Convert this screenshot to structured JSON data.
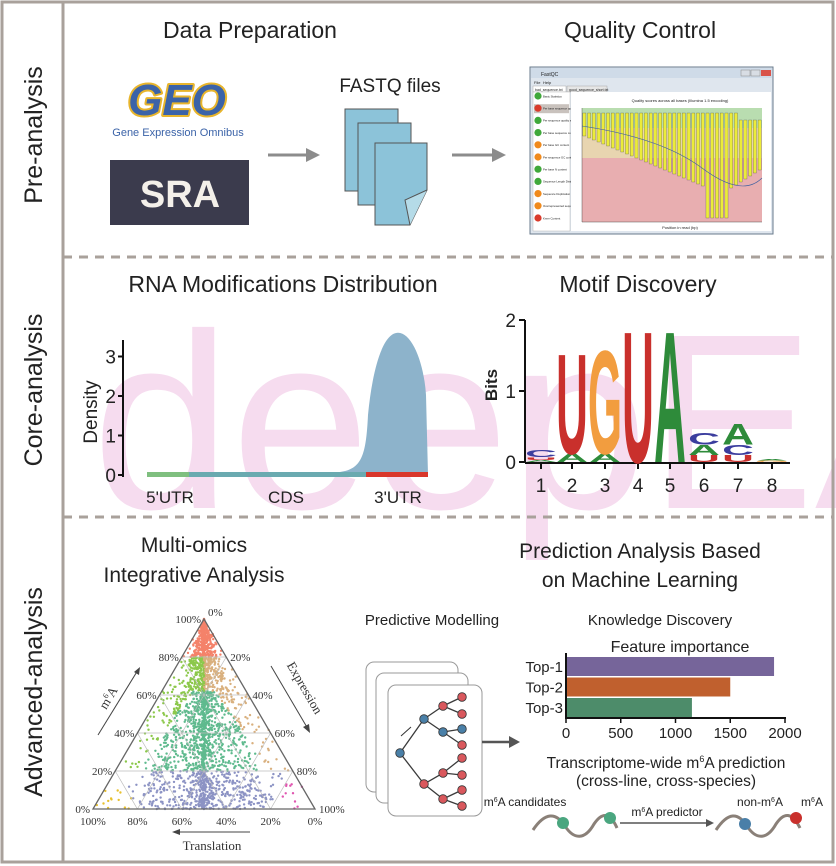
{
  "sections": {
    "pre": "Pre-analysis",
    "core": "Core-analysis",
    "advanced": "Advanced-analysis"
  },
  "data_preparation": {
    "title": "Data Preparation",
    "geo_logo": "GEO",
    "geo_subtitle": "Gene Expression Omnibus",
    "sra_logo": "SRA",
    "fastq_label": "FASTQ files"
  },
  "quality_control": {
    "title": "Quality Control",
    "window_title": "FastQC",
    "menu": [
      "File",
      "Help"
    ],
    "tabs": [
      "bad_sequence.txt",
      "good_sequence_short.txt"
    ],
    "modules": [
      {
        "label": "Basic Statistics",
        "status": "pass"
      },
      {
        "label": "Per base sequence quality",
        "status": "fail"
      },
      {
        "label": "Per sequence quality scores",
        "status": "pass"
      },
      {
        "label": "Per base sequence content",
        "status": "pass"
      },
      {
        "label": "Per base GC content",
        "status": "warn"
      },
      {
        "label": "Per sequence GC content",
        "status": "warn"
      },
      {
        "label": "Per base N content",
        "status": "pass"
      },
      {
        "label": "Sequence Length Distribution",
        "status": "pass"
      },
      {
        "label": "Sequence Duplication Levels",
        "status": "warn"
      },
      {
        "label": "Overrepresented sequences",
        "status": "warn"
      },
      {
        "label": "Kmer Content",
        "status": "fail"
      }
    ],
    "chart_title": "Quality scores across all bases (Illumina 1.5 encoding)",
    "chart_xlabel": "Position in read (bp)",
    "status_colors": {
      "pass": "#3fa83a",
      "fail": "#d93a2b",
      "warn": "#f08a1c"
    }
  },
  "rna_distribution": {
    "title": "RNA Modifications Distribution",
    "ylabel": "Density",
    "yticks": [
      "0",
      "1",
      "2",
      "3"
    ],
    "regions": [
      {
        "label": "5'UTR",
        "color": "#7fbf7f"
      },
      {
        "label": "CDS",
        "color": "#6aaab0"
      },
      {
        "label": "3'UTR",
        "color": "#d9372b"
      }
    ],
    "fill_color": "#8db3cb",
    "peak_density": 3.6
  },
  "motif": {
    "title": "Motif Discovery",
    "ylabel": "Bits",
    "yticks": [
      "0",
      "1",
      "2"
    ],
    "positions": [
      "1",
      "2",
      "3",
      "4",
      "5",
      "6",
      "7",
      "8"
    ],
    "consensus": [
      "C",
      "U",
      "G",
      "U",
      "A",
      "C",
      "A",
      ""
    ],
    "colors": {
      "A": "#2e8b3a",
      "C": "#3b3d9e",
      "G": "#f29d3f",
      "U": "#c9302c"
    }
  },
  "watermark": "deepEA",
  "multiomics": {
    "title_line1": "Multi-omics",
    "title_line2": "Integrative Analysis",
    "axis_m6a": {
      "pre": "m",
      "sup": "6",
      "post": "A"
    },
    "axis_expression": "Expression",
    "axis_translation": "Translation",
    "left_ticks": [
      "0%",
      "20%",
      "40%",
      "60%",
      "80%",
      "100%"
    ],
    "right_ticks": [
      "0%",
      "20%",
      "40%",
      "60%",
      "80%",
      "100%"
    ],
    "bottom_ticks": [
      "100%",
      "80%",
      "60%",
      "40%",
      "20%",
      "0%"
    ],
    "region_colors": {
      "top": "#f4826a",
      "left": "#8cc84b",
      "center": "#5fba8e",
      "right": "#d9b07e",
      "bottom": "#8c93c4",
      "bottom_left": "#e8c12f",
      "bottom_right": "#e056b0"
    }
  },
  "ml": {
    "title_line1": "Prediction Analysis Based",
    "title_line2": "on Machine Learning",
    "predictive_modelling": "Predictive Modelling",
    "knowledge_discovery": "Knowledge Discovery",
    "feature_importance": {
      "title": "Feature importance",
      "categories": [
        "Top-1",
        "Top-2",
        "Top-3"
      ],
      "values": [
        1900,
        1500,
        1150
      ],
      "colors": [
        "#76659a",
        "#c0602e",
        "#4d8c6a"
      ],
      "xticks": [
        "0",
        "500",
        "1000",
        "1500",
        "2000"
      ],
      "xlim": [
        0,
        2000
      ]
    },
    "prediction": {
      "line1": {
        "pre": "Transcriptome-wide m",
        "sup": "6",
        "post": "A prediction"
      },
      "line2": "(cross-line, cross-species)",
      "candidates": {
        "pre": "m",
        "sup": "6",
        "post": "A candidates"
      },
      "predictor": {
        "pre": "m",
        "sup": "6",
        "post": "A predictor"
      },
      "non_m6a": {
        "pre": "non-m",
        "sup": "6",
        "post": "A"
      },
      "m6a": {
        "pre": "m",
        "sup": "6",
        "post": "A"
      },
      "candidate_color": "#4aa67f",
      "non_m6a_color": "#4a7fa8",
      "m6a_color": "#c9302c"
    }
  }
}
